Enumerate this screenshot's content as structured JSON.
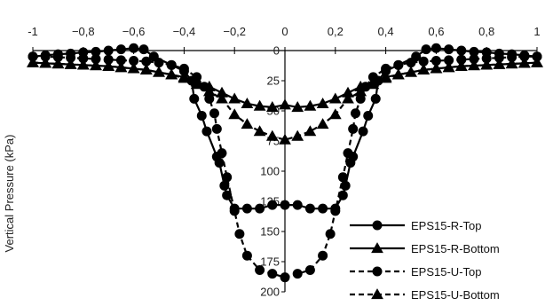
{
  "chart_data": {
    "type": "line",
    "title": "",
    "xlabel": "",
    "ylabel": "Vertical Pressure (kPa)",
    "xlim": [
      -1,
      1
    ],
    "ylim": [
      0,
      200
    ],
    "y_axis_inverted": true,
    "x_axis_position": "top",
    "y_axis_position": "center",
    "grid": false,
    "legend_position": "bottom-right",
    "x_ticks": [
      -1,
      -0.8,
      -0.6,
      -0.4,
      -0.2,
      0,
      0.2,
      0.4,
      0.6,
      0.8,
      1
    ],
    "x_tick_labels": [
      "-1",
      "−0,8",
      "−0,6",
      "−0,4",
      "−0,2",
      "0",
      "0,2",
      "0,4",
      "0,6",
      "0,8",
      "1"
    ],
    "y_ticks": [
      0,
      25,
      50,
      75,
      100,
      125,
      150,
      175,
      200
    ],
    "y_tick_labels": [
      "0",
      "25",
      "50",
      "75",
      "100",
      "125",
      "150",
      "175",
      "200"
    ],
    "series": [
      {
        "name": "EPS15-R-Top",
        "line_style": "solid",
        "marker": "circle",
        "color": "#000000",
        "x": [
          -1,
          -0.95,
          -0.9,
          -0.85,
          -0.8,
          -0.75,
          -0.7,
          -0.65,
          -0.6,
          -0.56,
          -0.52,
          -0.45,
          -0.4,
          -0.37,
          -0.36,
          -0.33,
          -0.31,
          -0.27,
          -0.26,
          -0.24,
          -0.23,
          -0.2,
          -0.15,
          -0.1,
          -0.05,
          0,
          0.05,
          0.1,
          0.15,
          0.2,
          0.23,
          0.24,
          0.26,
          0.27,
          0.31,
          0.33,
          0.36,
          0.37,
          0.4,
          0.45,
          0.52,
          0.56,
          0.6,
          0.65,
          0.7,
          0.75,
          0.8,
          0.85,
          0.9,
          0.95,
          1
        ],
        "y": [
          5,
          4,
          3,
          2.5,
          1.5,
          1,
          0,
          -1,
          -2,
          -1,
          5,
          12,
          17,
          25,
          40,
          54,
          67,
          88,
          93,
          112,
          120,
          131,
          131,
          131,
          128,
          128,
          128,
          131,
          131,
          131,
          120,
          112,
          93,
          88,
          67,
          54,
          40,
          25,
          17,
          12,
          5,
          -1,
          -2,
          -1,
          0,
          1,
          1.5,
          2.5,
          3,
          4,
          5
        ]
      },
      {
        "name": "EPS15-R-Bottom",
        "line_style": "solid",
        "marker": "triangle",
        "color": "#000000",
        "x": [
          -1,
          -0.95,
          -0.9,
          -0.85,
          -0.8,
          -0.75,
          -0.7,
          -0.65,
          -0.6,
          -0.55,
          -0.5,
          -0.45,
          -0.4,
          -0.35,
          -0.3,
          -0.25,
          -0.2,
          -0.15,
          -0.1,
          -0.05,
          0,
          0.05,
          0.1,
          0.15,
          0.2,
          0.25,
          0.3,
          0.35,
          0.4,
          0.45,
          0.5,
          0.55,
          0.6,
          0.65,
          0.7,
          0.75,
          0.8,
          0.85,
          0.9,
          0.95,
          1
        ],
        "y": [
          10,
          10.5,
          11,
          11.5,
          12,
          12.5,
          13,
          14,
          15,
          16,
          18,
          20,
          22,
          26,
          30,
          35,
          40,
          44,
          46,
          47,
          45,
          47,
          46,
          44,
          40,
          35,
          30,
          26,
          22,
          20,
          18,
          16,
          15,
          14,
          13,
          12.5,
          12,
          11.5,
          11,
          10.5,
          10
        ]
      },
      {
        "name": "EPS15-U-Top",
        "line_style": "dashed",
        "marker": "circle",
        "color": "#000000",
        "x": [
          -1,
          -0.95,
          -0.9,
          -0.85,
          -0.8,
          -0.75,
          -0.7,
          -0.65,
          -0.6,
          -0.55,
          -0.5,
          -0.45,
          -0.4,
          -0.35,
          -0.32,
          -0.3,
          -0.28,
          -0.27,
          -0.25,
          -0.23,
          -0.2,
          -0.18,
          -0.15,
          -0.1,
          -0.05,
          0,
          0.05,
          0.1,
          0.15,
          0.18,
          0.2,
          0.23,
          0.25,
          0.27,
          0.28,
          0.3,
          0.32,
          0.35,
          0.4,
          0.45,
          0.5,
          0.55,
          0.6,
          0.65,
          0.7,
          0.75,
          0.8,
          0.85,
          0.9,
          0.95,
          1
        ],
        "y": [
          5,
          5,
          5.5,
          6,
          6.5,
          7,
          7.5,
          8,
          8.5,
          9,
          10,
          12,
          15,
          22,
          30,
          40,
          52,
          65,
          85,
          105,
          133,
          152,
          170,
          182,
          185,
          188,
          185,
          182,
          170,
          152,
          133,
          105,
          85,
          65,
          52,
          40,
          30,
          22,
          15,
          12,
          10,
          9,
          8.5,
          8,
          7.5,
          7,
          6.5,
          6,
          5.5,
          5,
          5
        ]
      },
      {
        "name": "EPS15-U-Bottom",
        "line_style": "dashed",
        "marker": "triangle",
        "color": "#000000",
        "x": [
          -1,
          -0.95,
          -0.9,
          -0.85,
          -0.8,
          -0.75,
          -0.7,
          -0.65,
          -0.6,
          -0.55,
          -0.5,
          -0.45,
          -0.4,
          -0.35,
          -0.3,
          -0.25,
          -0.2,
          -0.15,
          -0.1,
          -0.05,
          0,
          0.05,
          0.1,
          0.15,
          0.2,
          0.25,
          0.3,
          0.35,
          0.4,
          0.45,
          0.5,
          0.55,
          0.6,
          0.65,
          0.7,
          0.75,
          0.8,
          0.85,
          0.9,
          0.95,
          1
        ],
        "y": [
          10,
          10.5,
          11,
          11.5,
          12,
          12.5,
          13,
          14,
          15,
          16,
          18,
          20,
          23,
          28,
          34,
          40,
          53,
          61,
          67,
          71,
          74,
          71,
          67,
          61,
          53,
          40,
          34,
          28,
          23,
          20,
          18,
          16,
          15,
          14,
          13,
          12.5,
          12,
          11.5,
          11,
          10.5,
          10
        ]
      }
    ]
  }
}
